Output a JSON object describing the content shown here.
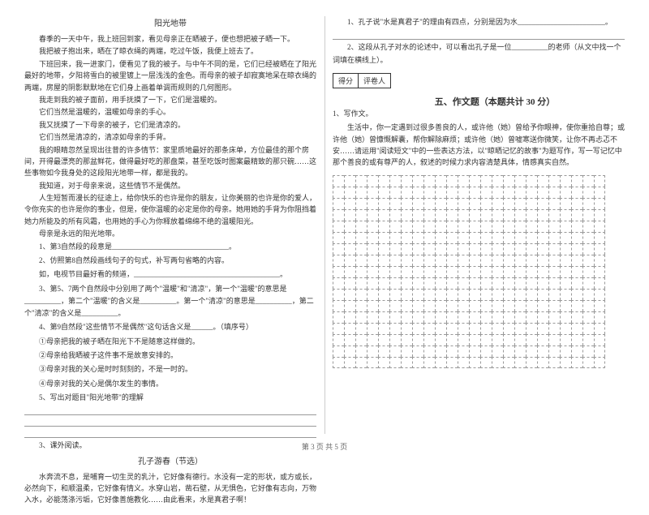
{
  "passage_title": "阳光地带",
  "passage": [
    "春季的一天中午，我上班回到家，看见母亲正在晒被子，便也想把被子晒一下。",
    "我把被子抱出来，晒在了晾衣绳的两端，吃过午饭，我便上班去了。",
    "下班回来，我一进家门，便看见了我的被子。与中午不同的是，它们已经被晒在了阳光最好的地带，夕阳将雪白的被里镀上一层浅浅的金色。而母亲的被子却寂寞地呆在晾衣绳的两端，房屋的阴影默默地在它们身上画着单调而规则的几何图形。",
    "我走到我的被子面前，用手抚摸了一下，它们是温暖的。",
    "它们当然是温暖的，温暖如母亲的手心。",
    "我又抚摸了一下母亲的被子，它们是清凉的。",
    "它们当然是清凉的，清凉如母亲的手背。",
    "我的眼睛忽然呈现出往昔的许多情节：家里质地最好的那条床单，方位最佳的那个房间，开得最漂亮的那盆鲜花，做得最好吃的那盘菜，甚至吃饭时图案最精致的那只碗……这些事物如今我身处的这段阳光地带一样，都是我的。",
    "我知道，对于母亲来说，这些情节不是偶然。",
    "人生短暂而漫长的征途上，给你快乐的也许是你的朋友，让你美丽的也许是你的爱人，令你充实的也许是你的事业，但是，使你温暖的必定是你的母亲。她用她的手背为你阻挡着她力所能及的所有风霜，也用她的手心为你释放着绵绵不绝的温暖阳光。",
    "母亲是永远的阳光地带。"
  ],
  "questions": [
    "1、第3自然段的段意是________________________________。",
    "2、仿照第8自然段画线句子的句式，补写两句省略的内容。",
    "如，电视节目最好看的频道，________________________________________。",
    "3、第5、7两个自然段中分别用了两个\"温暖\"和\"清凉\"，第一个\"温暖\"的意思是__________，第二个\"温暖\"的含义是__________。第一个\"清凉\"的意思是__________，第二个\"清凉\"的含义是__________。",
    "4、第9自然段\"这些情节不是偶然\"这句话含义是______。（填序号）",
    "①母亲把我的被子晒在阳光下不是随意这样做的。",
    "②母亲给我晒被子这件事不是故意安排的。",
    "③母亲对我的关心是时时刻刻的，不是一时的。",
    "④母亲对我的关心是偶尔发生的事情。",
    "5、写出对题目\"阳光地带\"的理解"
  ],
  "q3_title": "3、课外阅读。",
  "q3_subtitle": "孔子游春（节选）",
  "q3_passage": "水奔流不息，是哺育一切生灵的乳汁，它好像有德行。水没有一定的形状，或方或长，必然向下，和顺温柔，它好像有情义。水穿山岩，凿石壁，从无惧色，它好像有志向，万物入水，必能荡涤污垢，它好像善施教化……由此看来，水是真君子啊！",
  "right_q1": "1、孔子说\"水是真君子\"的理由有四点，分别是因为水________________________。",
  "right_q2": "2、这段从孔子对水的论述中，可以看出孔子是一位__________的老师（从文中找一个词填在横线上）。",
  "score_labels": {
    "score": "得分",
    "reviewer": "评卷人"
  },
  "section5_title": "五、作文题（本题共计 30 分）",
  "essay_q": "1、写作文。",
  "essay_prompt": "生活中，你一定遇到过很多善良的人，或许他（她）曾给予你眼神，使你重拾自尊；或许他（她）曾慷慨解囊，帮你解除麻烦；或许他（她）曾嘘寒送你微笑，让你不再忐忑不安……请运用\"阅读短文\"中的一些表达方法，以\"晾晒记忆的故事\"为题写作，写一写记忆中那个善良的或有尊严的人，叙述的时候力求内容清楚具体，情感真实自然。",
  "grid": {
    "rows": 17,
    "cols": 24
  },
  "footer": "第 3 页 共 5 页"
}
